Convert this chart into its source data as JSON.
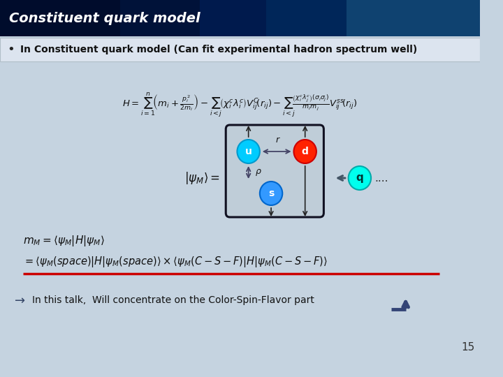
{
  "title": "Constituent quark model",
  "slide_bg": "#c5d3e0",
  "bullet_text": "In Constituent quark model (Can fit experimental hadron spectrum well)",
  "arrow_text": "In this talk,  Will concentrate on the Color-Spin-Flavor part",
  "page_number": "15",
  "quark_u_color": "#00CCFF",
  "quark_u_edge": "#0099CC",
  "quark_d_color": "#FF2200",
  "quark_d_edge": "#CC0000",
  "quark_s_color": "#3399FF",
  "quark_s_edge": "#0066CC",
  "quark_q_color": "#00FFEE",
  "quark_q_edge": "#00AAAA",
  "box_bg": "#bfcdd8",
  "box_edge": "#111122",
  "underline_color": "#CC0000",
  "header_color1": "#002060",
  "header_color2": "#001030",
  "bullet_bg": "#dce4ef",
  "arrow_color": "#334477"
}
